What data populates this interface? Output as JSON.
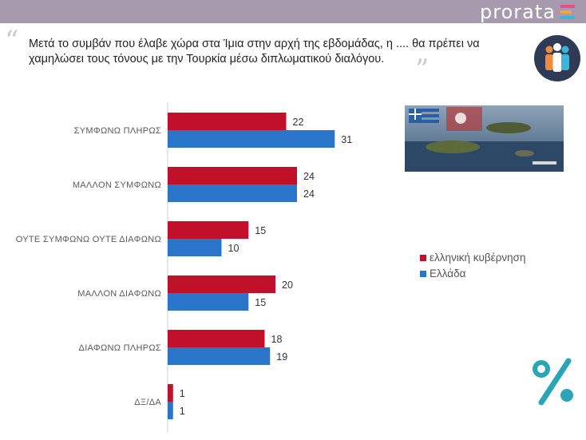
{
  "header": {
    "brand": "prorata",
    "brand_colors": [
      "#e84f8a",
      "#f2a53a",
      "#3eb3d8",
      "#ffffff"
    ]
  },
  "question": "Μετά το συμβάν που έλαβε χώρα στα Ίμια στην αρχή της εβδομάδας, η .... θα πρέπει να χαμηλώσει τους τόνους με την Τουρκία μέσω διπλωματικού διαλόγου.",
  "legend": {
    "items": [
      {
        "label": "ελληνική κυβέρνηση",
        "color": "#c0102a"
      },
      {
        "label": "Ελλάδα",
        "color": "#2a74c9"
      }
    ]
  },
  "chart_data": {
    "type": "bar",
    "orientation": "horizontal",
    "categories": [
      "ΣΥΜΦΩΝΩ ΠΛΗΡΩΣ",
      "ΜΑΛΛΟΝ ΣΥΜΦΩΝΩ",
      "ΟΥΤΕ ΣΥΜΦΩΝΩ ΟΥΤΕ ΔΙΑΦΩΝΩ",
      "ΜΑΛΛΟΝ ΔΙΑΦΩΝΩ",
      "ΔΙΑΦΩΝΩ ΠΛΗΡΩΣ",
      "ΔΞ/ΔΑ"
    ],
    "series": [
      {
        "name": "ελληνική κυβέρνηση",
        "values": [
          22,
          24,
          15,
          20,
          18,
          1
        ],
        "color": "#c0102a"
      },
      {
        "name": "Ελλάδα",
        "values": [
          31,
          24,
          10,
          15,
          19,
          1
        ],
        "color": "#2a74c9"
      }
    ],
    "xlim": [
      0,
      40
    ],
    "grid": false,
    "legend_position": "right"
  },
  "decor": {
    "accent_teal": "#2aa5b8",
    "badge_color": "#2f3b56"
  }
}
